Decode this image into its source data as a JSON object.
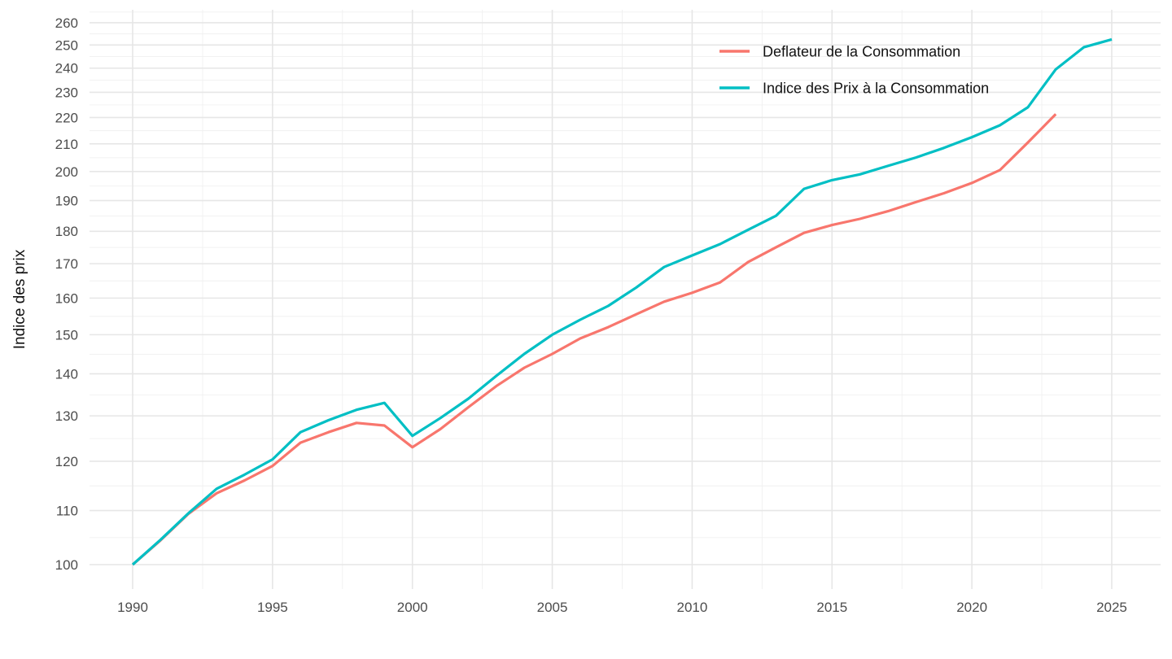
{
  "chart_data": {
    "type": "line",
    "title": "",
    "xlabel": "",
    "ylabel": "Indice des prix",
    "y_scale": "log",
    "grid": true,
    "legend_position": "inside-top-right",
    "x_ticks": [
      1990,
      1995,
      2000,
      2005,
      2010,
      2015,
      2020,
      2025
    ],
    "y_ticks": [
      260,
      250,
      240,
      230,
      220,
      210,
      200,
      190,
      180,
      170,
      160,
      150,
      140,
      130,
      120,
      110,
      100
    ],
    "xlim": [
      1988.25,
      2026.75
    ],
    "ylim": [
      95.5,
      264.5
    ],
    "series": [
      {
        "name": "Deflateur de la Consommation",
        "color": "#F8766D",
        "years": [
          1990,
          1991,
          1992,
          1993,
          1994,
          1995,
          1996,
          1997,
          1998,
          1999,
          2000,
          2001,
          2002,
          2003,
          2004,
          2005,
          2006,
          2007,
          2008,
          2009,
          2010,
          2011,
          2012,
          2013,
          2014,
          2015,
          2016,
          2017,
          2018,
          2019,
          2020,
          2021,
          2022,
          2023
        ],
        "values": [
          100,
          104.4,
          109.4,
          113.4,
          116,
          119,
          124,
          126.3,
          128.4,
          127.8,
          123,
          127,
          132,
          137,
          141.5,
          145,
          149,
          152,
          155.5,
          159,
          161.5,
          164.5,
          170.5,
          175,
          179.5,
          182,
          184,
          186.5,
          189.5,
          192.5,
          196,
          200.5,
          210.5,
          221.3
        ]
      },
      {
        "name": "Indice des Prix à la Consommation",
        "color": "#00BFC4",
        "years": [
          1990,
          1991,
          1992,
          1993,
          1994,
          1995,
          1996,
          1997,
          1998,
          1999,
          2000,
          2001,
          2002,
          2003,
          2004,
          2005,
          2006,
          2007,
          2008,
          2009,
          2010,
          2011,
          2012,
          2013,
          2014,
          2015,
          2016,
          2017,
          2018,
          2019,
          2020,
          2021,
          2022,
          2023,
          2024,
          2025
        ],
        "values": [
          100,
          104.5,
          109.5,
          114.3,
          117.2,
          120.4,
          126.3,
          129,
          131.4,
          133,
          125.5,
          129.5,
          134,
          139.5,
          145,
          150,
          154,
          157.8,
          163,
          169,
          172.5,
          176,
          180.5,
          185,
          194,
          197,
          199,
          202,
          205,
          208.5,
          212.5,
          217,
          224,
          239.5,
          249,
          252.5
        ]
      }
    ]
  }
}
